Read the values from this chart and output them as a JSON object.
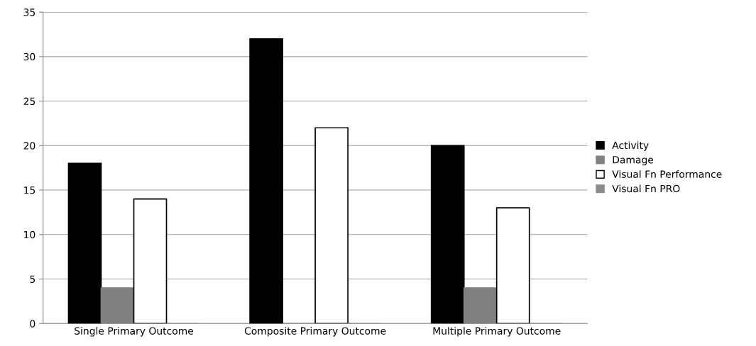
{
  "chart_data": {
    "type": "bar",
    "categories": [
      "Single Primary Outcome",
      "Composite Primary Outcome",
      "Multiple Primary Outcome"
    ],
    "series": [
      {
        "name": "Activity",
        "color": "#000000",
        "values": [
          18,
          32,
          20
        ]
      },
      {
        "name": "Damage",
        "color": "#808080",
        "values": [
          4,
          0,
          4
        ]
      },
      {
        "name": "Visual Fn Performance",
        "color": "#ffffff",
        "values": [
          14,
          22,
          13
        ]
      },
      {
        "name": "Visual Fn PRO",
        "color": "#8c8c8c",
        "values": [
          0,
          0,
          0
        ]
      }
    ],
    "ylim": [
      0,
      35
    ],
    "yticks": [
      0,
      5,
      10,
      15,
      20,
      25,
      30,
      35
    ],
    "grid": "y",
    "legend": "right"
  }
}
